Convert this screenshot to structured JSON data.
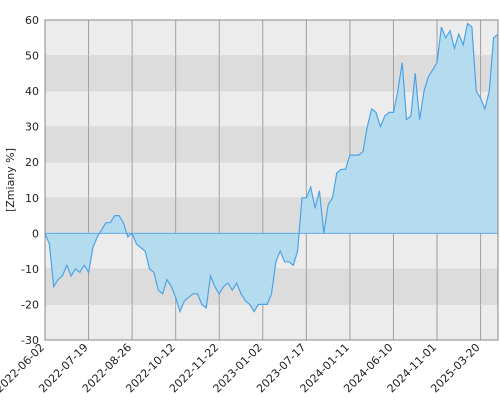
{
  "chart_data": {
    "type": "area",
    "y_label": "[Zmiany %]",
    "categories": [
      "2022-06-02",
      null,
      null,
      null,
      null,
      null,
      null,
      null,
      null,
      null,
      "2022-07-19",
      null,
      null,
      null,
      null,
      null,
      null,
      null,
      null,
      null,
      "2022-08-26",
      null,
      null,
      null,
      null,
      null,
      null,
      null,
      null,
      null,
      "2022-10-12",
      null,
      null,
      null,
      null,
      null,
      null,
      null,
      null,
      null,
      "2022-11-22",
      null,
      null,
      null,
      null,
      null,
      null,
      null,
      null,
      null,
      "2023-01-02",
      null,
      null,
      null,
      null,
      null,
      null,
      null,
      null,
      null,
      "2023-07-17",
      null,
      null,
      null,
      null,
      null,
      null,
      null,
      null,
      null,
      "2024-01-11",
      null,
      null,
      null,
      null,
      null,
      null,
      null,
      null,
      null,
      "2024-06-10",
      null,
      null,
      null,
      null,
      null,
      null,
      null,
      null,
      null,
      "2024-11-01",
      null,
      null,
      null,
      null,
      null,
      null,
      null,
      null,
      null,
      "2025-03-20",
      null,
      null,
      null,
      null
    ],
    "values": [
      0,
      -3,
      -15,
      -13,
      -12,
      -9,
      -12,
      -10,
      -11,
      -9,
      -11,
      -4,
      -1,
      1,
      3,
      3,
      5,
      5,
      3,
      -1,
      0,
      -3,
      -4,
      -5,
      -10,
      -11,
      -16,
      -17,
      -13,
      -15,
      -18,
      -22,
      -19,
      -18,
      -17,
      -17,
      -20,
      -21,
      -12,
      -15,
      -17,
      -15,
      -14,
      -16,
      -14,
      -17,
      -19,
      -20,
      -22,
      -20,
      -20,
      -20,
      -17,
      -8,
      -5,
      -8,
      -8,
      -9,
      -5,
      10,
      10,
      13,
      7,
      12,
      0,
      8,
      10,
      17,
      18,
      18,
      22,
      22,
      22,
      23,
      30,
      35,
      34,
      30,
      33,
      34,
      34,
      40,
      48,
      32,
      33,
      45,
      32,
      40,
      44,
      46,
      48,
      58,
      55,
      57,
      52,
      56,
      53,
      59,
      58,
      40,
      38,
      35,
      40,
      55,
      56
    ],
    "color": "#4da3e6",
    "fill": "#b4dcee",
    "ylim": [
      -30,
      60
    ],
    "yticks": [
      -30,
      -20,
      -10,
      0,
      10,
      20,
      30,
      40,
      50,
      60
    ],
    "band_colors": [
      "#dcdcdc",
      "#ececec"
    ]
  }
}
